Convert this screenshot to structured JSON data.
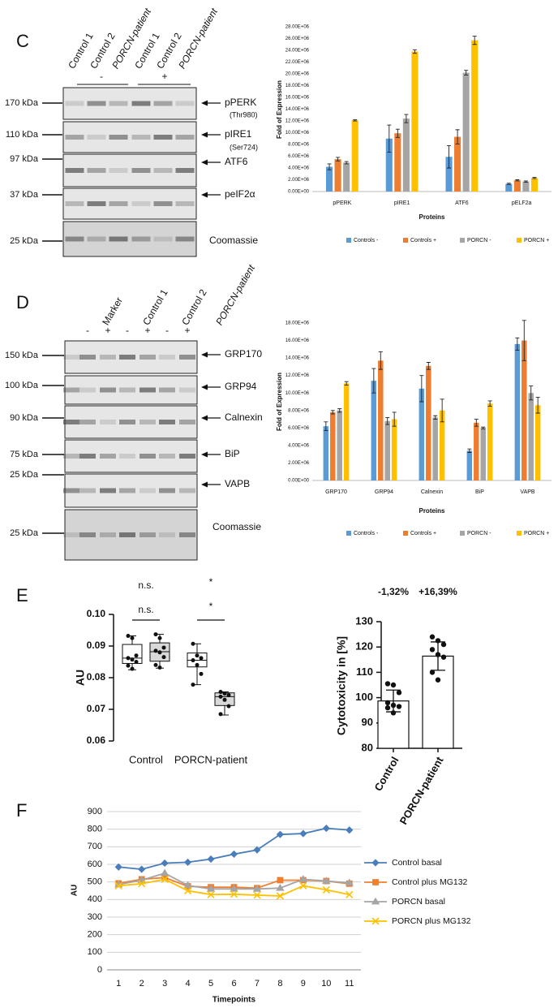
{
  "figure": {
    "panel_labels": [
      "C",
      "D",
      "E",
      "F"
    ],
    "blot_c": {
      "lanes": [
        "Control 1",
        "Control 2",
        "PORCN-patient",
        "Control 1",
        "Control 2",
        "PORCN-patient"
      ],
      "treatments": [
        "-",
        "+"
      ],
      "markers": [
        "170 kDa",
        "110 kDa",
        "97 kDa",
        "37 kDa",
        "25 kDa"
      ],
      "proteins": [
        "pPERK",
        "(Thr980)",
        "pIRE1",
        "(Ser724)",
        "ATF6",
        "peIF2α",
        "Coomassie"
      ]
    },
    "blot_d": {
      "lanes": [
        "Marker",
        "Control 1",
        "Control 2",
        "PORCN-patient"
      ],
      "treatments": [
        "-",
        "+",
        "-",
        "+",
        "-",
        "+"
      ],
      "markers": [
        "150 kDa",
        "100 kDa",
        "90 kDa",
        "75 kDa",
        "25 kDa",
        "25 kDa"
      ],
      "proteins": [
        "GRP170",
        "GRP94",
        "Calnexin",
        "BiP",
        "VAPB",
        "Coomassie"
      ]
    }
  },
  "chart_data": [
    {
      "type": "bar",
      "x_label": "Proteins",
      "y_label": "Fold of Expression",
      "categories": [
        "pPERK",
        "pIRE1",
        "ATF6",
        "pELF2a"
      ],
      "ylim": [
        0,
        28000000
      ],
      "yticks": [
        {
          "value": 0,
          "label": "0.00E+00"
        },
        {
          "value": 2000000,
          "label": "2.00E+06"
        },
        {
          "value": 4000000,
          "label": "4.00E+06"
        },
        {
          "value": 6000000,
          "label": "6.00E+06"
        },
        {
          "value": 8000000,
          "label": "8.00E+06"
        },
        {
          "value": 10000000,
          "label": "10.00E+06"
        },
        {
          "value": 12000000,
          "label": "12.00E+06"
        },
        {
          "value": 14000000,
          "label": "14.00E+06"
        },
        {
          "value": 16000000,
          "label": "16.00E+06"
        },
        {
          "value": 18000000,
          "label": "18.00E+06"
        },
        {
          "value": 20000000,
          "label": "20.00E+06"
        },
        {
          "value": 22000000,
          "label": "22.00E+06"
        },
        {
          "value": 24000000,
          "label": "24.00E+06"
        },
        {
          "value": 26000000,
          "label": "26.00E+06"
        },
        {
          "value": 28000000,
          "label": "28.00E+06"
        }
      ],
      "legend": "bottom",
      "series": [
        {
          "name": "Controls -",
          "color": "#5b9bd5",
          "values": [
            4200000,
            9000000,
            5900000,
            1300000
          ],
          "errors": [
            500000,
            2300000,
            1900000,
            100000
          ]
        },
        {
          "name": "Controls +",
          "color": "#ed7d31",
          "values": [
            5500000,
            9900000,
            9300000,
            1900000
          ],
          "errors": [
            300000,
            700000,
            1200000,
            100000
          ]
        },
        {
          "name": "PORCN -",
          "color": "#a5a5a5",
          "values": [
            4900000,
            12400000,
            20200000,
            1700000
          ],
          "errors": [
            200000,
            700000,
            400000,
            100000
          ]
        },
        {
          "name": "PORCN +",
          "color": "#ffc000",
          "values": [
            12100000,
            23800000,
            25700000,
            2300000
          ],
          "errors": [
            100000,
            300000,
            700000,
            100000
          ]
        }
      ]
    },
    {
      "type": "bar",
      "x_label": "Proteins",
      "y_label": "Fold of Expression",
      "categories": [
        "GRP170",
        "GRP94",
        "Calnexin",
        "BiP",
        "VAPB"
      ],
      "ylim": [
        0,
        18000000
      ],
      "yticks": [
        {
          "value": 0,
          "label": "0.00E+00"
        },
        {
          "value": 2000000,
          "label": "2.00E+06"
        },
        {
          "value": 4000000,
          "label": "4.00E+06"
        },
        {
          "value": 6000000,
          "label": "6.00E+06"
        },
        {
          "value": 8000000,
          "label": "8.00E+06"
        },
        {
          "value": 10000000,
          "label": "10.00E+06"
        },
        {
          "value": 12000000,
          "label": "12.00E+06"
        },
        {
          "value": 14000000,
          "label": "14.00E+06"
        },
        {
          "value": 16000000,
          "label": "16.00E+06"
        },
        {
          "value": 18000000,
          "label": "18.00E+06"
        }
      ],
      "legend": "bottom",
      "series": [
        {
          "name": "Controls -",
          "color": "#5b9bd5",
          "values": [
            6200000,
            11400000,
            10500000,
            3400000,
            15600000
          ],
          "errors": [
            500000,
            1400000,
            1500000,
            200000,
            700000
          ]
        },
        {
          "name": "Controls +",
          "color": "#ed7d31",
          "values": [
            7800000,
            13700000,
            13100000,
            6600000,
            16000000
          ],
          "errors": [
            200000,
            1000000,
            400000,
            400000,
            2300000
          ]
        },
        {
          "name": "PORCN -",
          "color": "#a5a5a5",
          "values": [
            8000000,
            6800000,
            7200000,
            6000000,
            10000000
          ],
          "errors": [
            200000,
            400000,
            200000,
            100000,
            800000
          ]
        },
        {
          "name": "PORCN +",
          "color": "#ffc000",
          "values": [
            11100000,
            7000000,
            8000000,
            8800000,
            8600000
          ],
          "errors": [
            200000,
            800000,
            1300000,
            300000,
            900000
          ]
        }
      ]
    },
    {
      "type": "box",
      "y_label": "AU",
      "categories": [
        "Control",
        "PORCN-patient"
      ],
      "ylim": [
        0.06,
        0.1
      ],
      "yticks": [
        0.06,
        0.07,
        0.08,
        0.09,
        {
          "value": 0.1,
          "label": "0.10"
        }
      ],
      "annotations": [
        "n.s.",
        "n.s.",
        "*",
        "*"
      ],
      "boxes": [
        {
          "color": "#ffffff",
          "min": 0.0825,
          "q1": 0.0845,
          "median": 0.0862,
          "q3": 0.0905,
          "max": 0.0932,
          "points": [
            0.0932,
            0.0925,
            0.087,
            0.0862,
            0.0857,
            0.085,
            0.0838,
            0.0828
          ]
        },
        {
          "color": "#d9d9d9",
          "min": 0.083,
          "q1": 0.0852,
          "median": 0.0882,
          "q3": 0.091,
          "max": 0.0937,
          "points": [
            0.0937,
            0.0925,
            0.0895,
            0.0885,
            0.088,
            0.0865,
            0.084,
            0.0832
          ]
        },
        {
          "color": "#ffffff",
          "min": 0.0778,
          "q1": 0.0834,
          "median": 0.0855,
          "q3": 0.0878,
          "max": 0.0907,
          "points": [
            0.0907,
            0.087,
            0.0862,
            0.0855,
            0.084,
            0.0812,
            0.0778
          ]
        },
        {
          "color": "#d9d9d9",
          "min": 0.0682,
          "q1": 0.0712,
          "median": 0.074,
          "q3": 0.0752,
          "max": 0.0755,
          "points": [
            0.0755,
            0.075,
            0.0745,
            0.074,
            0.073,
            0.071,
            0.0685
          ]
        }
      ]
    },
    {
      "type": "bar",
      "y_label": "Cytotoxicity in [%]",
      "categories": [
        "Control",
        "PORCN-patient"
      ],
      "values": [
        98.7,
        116.4
      ],
      "errors": [
        4.3,
        5.6
      ],
      "points": [
        [
          105.5,
          105,
          102,
          98,
          97,
          96.5,
          96,
          94
        ],
        [
          124,
          122.5,
          121,
          119,
          117,
          116,
          110,
          107
        ]
      ],
      "annotations": [
        "-1,32%",
        "+16,39%"
      ],
      "color": "#ffffff",
      "ylim": [
        80,
        130
      ],
      "yticks": [
        80,
        90,
        100,
        110,
        120,
        130
      ]
    },
    {
      "type": "line",
      "x_label": "Timepoints",
      "y_label": "AU",
      "categories": [
        "1",
        "2",
        "3",
        "4",
        "5",
        "6",
        "7",
        "8",
        "9",
        "10",
        "11"
      ],
      "ylim": [
        0,
        900
      ],
      "yticks": [
        0,
        100,
        200,
        300,
        400,
        500,
        600,
        700,
        800,
        900
      ],
      "grid": true,
      "legend": "right",
      "series": [
        {
          "name": "Control basal",
          "color": "#4a7ebb",
          "marker": "diamond",
          "values": [
            585,
            572,
            607,
            612,
            630,
            658,
            682,
            770,
            775,
            805,
            795
          ]
        },
        {
          "name": "Control plus MG132",
          "color": "#f07f30",
          "marker": "square",
          "values": [
            492,
            515,
            525,
            475,
            470,
            470,
            465,
            510,
            510,
            505,
            490
          ]
        },
        {
          "name": "PORCN basal",
          "color": "#a5a5a5",
          "marker": "triangle",
          "values": [
            485,
            510,
            550,
            480,
            460,
            460,
            460,
            465,
            515,
            505,
            495
          ]
        },
        {
          "name": "PORCN plus MG132",
          "color": "#ffc000",
          "marker": "x",
          "values": [
            478,
            490,
            515,
            450,
            428,
            430,
            425,
            420,
            478,
            455,
            428
          ]
        }
      ]
    }
  ]
}
